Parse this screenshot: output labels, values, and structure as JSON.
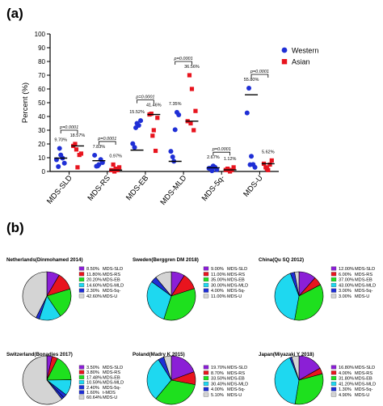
{
  "panels": {
    "a": "(a)",
    "b": "(b)"
  },
  "colors": {
    "western": "#1f2fd6",
    "asian": "#e8141e",
    "subtypes": [
      "#8b1fd6",
      "#e8141e",
      "#1ee01e",
      "#1ed8f0",
      "#1f2fd6",
      "#d4d4d4"
    ]
  },
  "chart_data": [
    {
      "type": "scatter",
      "ylabel": "Percent (%)",
      "ylim": [
        0,
        100
      ],
      "yticks": [
        "0",
        "10",
        "20",
        "30",
        "40",
        "50",
        "60",
        "70",
        "80",
        "90",
        "100"
      ],
      "categories": [
        "MDS-SLD",
        "MDS-RS",
        "MDS-EB",
        "MDS-MLD",
        "MDS-5q-",
        "MDS-U"
      ],
      "legend": [
        "Western",
        "Asian"
      ],
      "legend_position": "top-right",
      "series": [
        {
          "name": "Western",
          "points": [
            [
              8.5,
              3.5,
              12.0,
              9.7,
              6.0,
              16.8
            ],
            [
              11.8,
              3.8,
              5.0,
              8.7,
              6.5,
              4.0
            ],
            [
              20.2,
              17.5,
              35.0,
              33.5,
              37.0,
              31.8
            ],
            [
              14.6,
              10.6,
              30.4,
              43.0,
              41.2,
              7.4
            ],
            [
              2.3,
              2.4,
              4.0,
              3.0,
              1.3,
              0.5
            ],
            [
              42.6,
              60.6,
              11.0,
              5.1,
              3.0,
              4.9
            ]
          ],
          "medians": [
            9.7,
            7.83,
            15.52,
            7.35,
            2.67,
            55.8
          ]
        },
        {
          "name": "Asian",
          "points": [
            [
              18.57,
              20,
              3,
              12,
              13,
              16
            ],
            [
              0.97,
              5,
              2,
              1,
              3,
              0
            ],
            [
              41.46,
              42,
              30,
              15,
              39,
              26
            ],
            [
              36.56,
              70,
              60,
              30,
              44,
              35
            ],
            [
              1.12,
              2,
              0,
              1,
              3,
              1
            ],
            [
              5.62,
              3,
              1,
              5,
              8,
              2
            ]
          ],
          "medians": [
            18.57,
            0.97,
            41.46,
            36.56,
            1.12,
            5.62
          ]
        }
      ],
      "annotations": [
        {
          "pvalue": "p=0.0001",
          "western": "9.70%",
          "asian": "18.57%"
        },
        {
          "pvalue": "p=0.0001",
          "western": "7.83%",
          "asian": "0.97%"
        },
        {
          "pvalue": "p=0.0001",
          "western": "15.52%",
          "asian": "41.46%"
        },
        {
          "pvalue": "p=0.0001",
          "western": "7.35%",
          "asian": "36.56%"
        },
        {
          "pvalue": "p=0.0001",
          "western": "2.67%",
          "asian": "1.12%"
        },
        {
          "pvalue": "p=0.0001",
          "western": "55.80%",
          "asian": "5.62%"
        }
      ]
    },
    {
      "type": "pie",
      "title": "Netherlands(Dinmohamed 2014)",
      "labels": [
        "MDS-SLD",
        "MDS-RS",
        "MDS-EB",
        "MDS-MLD",
        "MDS-5q-",
        "MDS-U"
      ],
      "values": [
        8.5,
        11.8,
        20.2,
        14.6,
        2.3,
        42.6
      ],
      "display": [
        "8.50%",
        "11.80%",
        "20.20%",
        "14.60%",
        "2.30%",
        "42.60%"
      ]
    },
    {
      "type": "pie",
      "title": "Sweden(Berggren DM 2018)",
      "labels": [
        "MDS-SLD",
        "MDS-RS",
        "MDS-EB",
        "MDS-MLD",
        "MDS-5q-",
        "MDS-U"
      ],
      "values": [
        9.0,
        11.0,
        35.0,
        30.0,
        4.0,
        11.0
      ],
      "display": [
        "9.00%",
        "11.00%",
        "35.00%",
        "30.00%",
        "4.00%",
        "11.00%"
      ]
    },
    {
      "type": "pie",
      "title": "China(Qu SQ 2012)",
      "labels": [
        "MDS-SLD",
        "MDS-RS",
        "MDS-EB",
        "MDS-MLD",
        "MDS-5q-",
        "MDS-U"
      ],
      "values": [
        12.0,
        6.0,
        37.0,
        43.0,
        3.0,
        3.0
      ],
      "display": [
        "12.00%",
        "6.00%",
        "37.00%",
        "43.00%",
        "3.00%",
        "3.00%"
      ]
    },
    {
      "type": "pie",
      "title": "Switzerland(Bonadies 2017)",
      "labels": [
        "MDS-SLD",
        "MDS-RS",
        "MDS-EB",
        "MDS-MLD",
        "MDS-5q-",
        "t-MDS",
        "MDS-U"
      ],
      "values": [
        3.5,
        3.8,
        17.48,
        10.59,
        2.4,
        1.6,
        60.64
      ],
      "display": [
        "3.50%",
        "3.80%",
        "17.48%",
        "10.59%",
        "2.40%",
        "1.60%",
        "60.64%"
      ]
    },
    {
      "type": "pie",
      "title": "Poland(Madry K 2015)",
      "labels": [
        "MDS-SLD",
        "MDS-RS",
        "MDS-EB",
        "MDS-MLD",
        "MDS-5q-",
        "MDS-U"
      ],
      "values": [
        19.7,
        8.7,
        33.5,
        30.4,
        4.0,
        5.1
      ],
      "display": [
        "19.70%",
        "8.70%",
        "33.50%",
        "30.40%",
        "4.00%",
        "5.10%"
      ]
    },
    {
      "type": "pie",
      "title": "Japan(Miyazaki Y 2018)",
      "labels": [
        "MDS-SLD",
        "MDS-RS",
        "MDS-EB",
        "MDS-MLD",
        "MDS-5q-",
        "MDS-U"
      ],
      "values": [
        16.8,
        4.0,
        31.8,
        41.2,
        1.3,
        4.9
      ],
      "display": [
        "16.80%",
        "4.00%",
        "31.80%",
        "41.20%",
        "1.30%",
        "4.90%"
      ]
    }
  ]
}
